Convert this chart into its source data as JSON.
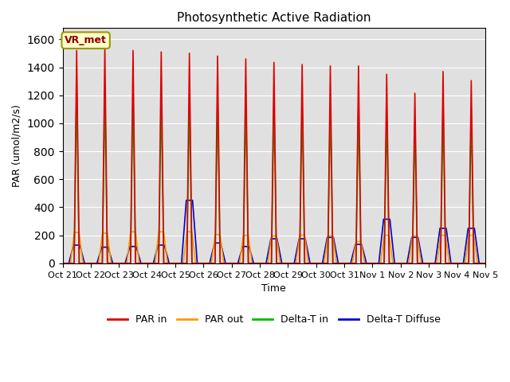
{
  "title": "Photosynthetic Active Radiation",
  "ylabel": "PAR (umol/m2/s)",
  "xlabel": "Time",
  "legend_labels": [
    "PAR in",
    "PAR out",
    "Delta-T in",
    "Delta-T Diffuse"
  ],
  "legend_colors": [
    "#dd0000",
    "#ff9900",
    "#00bb00",
    "#0000cc"
  ],
  "annotation_text": "VR_met",
  "background_color": "#e0e0e0",
  "ylim": [
    0,
    1680
  ],
  "xtick_labels": [
    "Oct 21",
    "Oct 22",
    "Oct 23",
    "Oct 24",
    "Oct 25",
    "Oct 26",
    "Oct 27",
    "Oct 28",
    "Oct 29",
    "Oct 30",
    "Oct 31",
    "Nov 1",
    "Nov 2",
    "Nov 3",
    "Nov 4",
    "Nov 5"
  ],
  "par_in_peaks": [
    1520,
    1540,
    1520,
    1510,
    1500,
    1480,
    1460,
    1435,
    1420,
    1410,
    1410,
    1350,
    1215,
    1370,
    1305,
    0
  ],
  "par_out_peaks": [
    220,
    215,
    225,
    225,
    225,
    205,
    200,
    195,
    200,
    195,
    155,
    200,
    195,
    200,
    200,
    0
  ],
  "delta_t_in_peaks": [
    1265,
    1220,
    1225,
    1210,
    1195,
    1185,
    1165,
    1150,
    1140,
    1130,
    1130,
    1085,
    1000,
    1115,
    1080,
    0
  ],
  "delta_t_diffuse_peaks": [
    130,
    115,
    120,
    130,
    450,
    145,
    120,
    175,
    175,
    185,
    135,
    315,
    185,
    250,
    250,
    0
  ],
  "grid_color": "#ffffff",
  "title_fontsize": 11,
  "axis_fontsize": 9,
  "tick_fontsize": 8
}
